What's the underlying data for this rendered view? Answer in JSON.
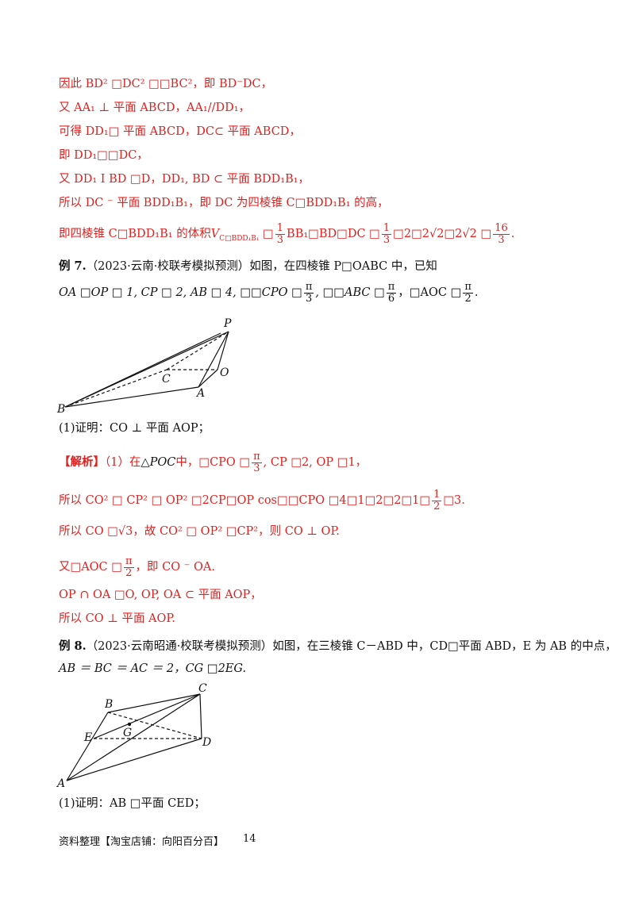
{
  "lines": {
    "l1": "因此 BD² □DC² □□BC²，即 BD⁻DC，",
    "l2": "又 AA₁ ⊥ 平面 ABCD，AA₁//DD₁，",
    "l3": "可得 DD₁□ 平面 ABCD，DC⊂ 平面 ABCD，",
    "l4": "即 DD₁□□DC，",
    "l5": "又 DD₁ I BD □D，DD₁, BD ⊂ 平面 BDD₁B₁，",
    "l6": "所以 DC ⁻ 平面 BDD₁B₁，即 DC 为四棱锥 C□BDD₁B₁ 的高，",
    "l7a": "即四棱锥 C□BDD₁B₁ 的体积",
    "l7b": "V",
    "l7c": "C□BDD₁B₁",
    "l7d": " □",
    "l7frac1_num": "1",
    "l7frac1_den": "3",
    "l7e": "BB₁□BD□DC □",
    "l7frac2_num": "1",
    "l7frac2_den": "3",
    "l7f": "□2□2√2□2√2 □",
    "l7frac3_num": "16",
    "l7frac3_den": "3",
    "l7g": ".",
    "ex7_label": "例 7.",
    "ex7_text": "（2023·云南·校联考模拟预测）如图，在四棱锥 P□OABC 中，已知",
    "ex7_cond_a": "OA □OP □ 1, CP □ 2, AB □ 4, □□CPO □",
    "ex7_frac1_num": "π",
    "ex7_frac1_den": "3",
    "ex7_cond_b": ", □□ABC □",
    "ex7_frac2_num": "π",
    "ex7_frac2_den": "6",
    "ex7_cond_c": "，□AOC □",
    "ex7_frac3_num": "π",
    "ex7_frac3_den": "2",
    "ex7_cond_d": ".",
    "ex7_q1": "(1)证明：CO ⊥ 平面 AOP；",
    "sol_label": "【解析】",
    "sol_a": "（1）在",
    "sol_tri": "△POC",
    "sol_b": "中，□CPO □",
    "sol_frac_num": "π",
    "sol_frac_den": "3",
    "sol_c": ", CP □2, OP □1，",
    "s2a": "所以 CO² □ CP² □ OP² □2CP□OP cos□□CPO □4□1□2□2□1□",
    "s2frac_num": "1",
    "s2frac_den": "2",
    "s2b": "□3.",
    "s3": "所以 CO □√3，故 CO² □ OP² □CP²，则 CO ⊥ OP.",
    "s4a": "又□AOC □",
    "s4frac_num": "π",
    "s4frac_den": "2",
    "s4b": "，即 CO ⁻ OA.",
    "s5": "OP ∩ OA □O, OP, OA ⊂ 平面 AOP，",
    "s6": "所以 CO ⊥ 平面 AOP.",
    "ex8_label": "例 8.",
    "ex8_text": "（2023·云南昭通·校联考模拟预测）如图，在三棱锥 C－ABD 中，CD□平面 ABD，E 为 AB 的中点，",
    "ex8_cond": "AB ＝ BC ＝ AC ＝ 2，CG □2EG.",
    "ex8_q1": "(1)证明：AB □平面 CED；"
  },
  "fig1_labels": {
    "P": "P",
    "O": "O",
    "C": "C",
    "A": "A",
    "B": "B"
  },
  "fig2_labels": {
    "B": "B",
    "C": "C",
    "E": "E",
    "G": "G",
    "D": "D",
    "A": "A"
  },
  "footer": {
    "text": "资料整理【淘宝店铺：向阳百分百】",
    "page": "14"
  },
  "colors": {
    "red": "#e0211f",
    "black": "#111111"
  }
}
